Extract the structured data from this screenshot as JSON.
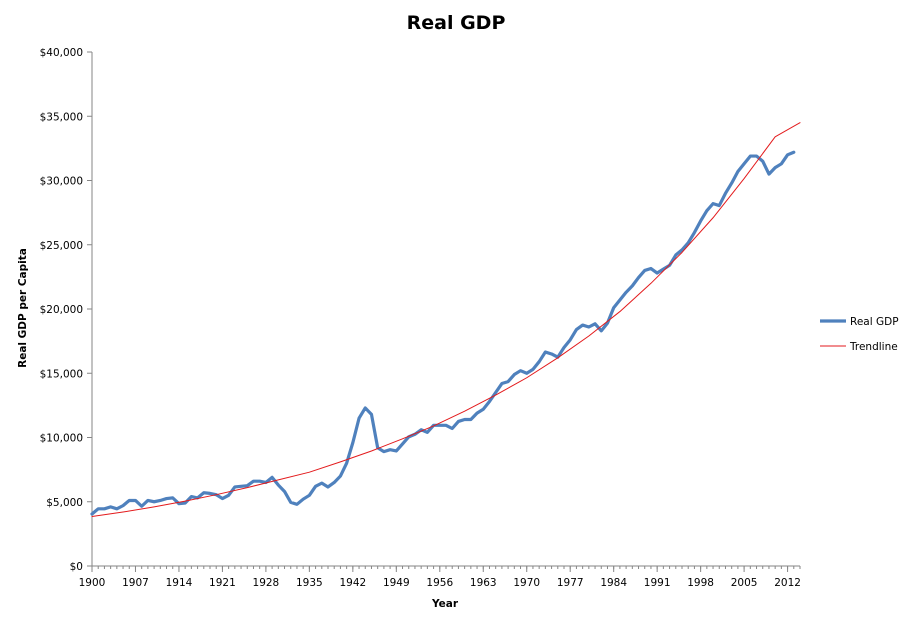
{
  "chart_data": {
    "type": "line",
    "title": "Real GDP",
    "xlabel": "Year",
    "ylabel": "Real GDP per Capita",
    "xlim": [
      1900,
      2014
    ],
    "ylim": [
      0,
      40000
    ],
    "x_ticks": [
      "1900",
      "1907",
      "1914",
      "1921",
      "1928",
      "1935",
      "1942",
      "1949",
      "1956",
      "1963",
      "1970",
      "1977",
      "1984",
      "1991",
      "1998",
      "2005",
      "2012"
    ],
    "y_ticks": [
      "$0",
      "$5,000",
      "$10,000",
      "$15,000",
      "$20,000",
      "$25,000",
      "$30,000",
      "$35,000",
      "$40,000"
    ],
    "grid": false,
    "legend_position": "right",
    "colors": {
      "real_gdp": "#4f81bd",
      "trendline": "#e31a1c"
    },
    "series": [
      {
        "name": "Real GDP",
        "x": [
          1900,
          1901,
          1902,
          1903,
          1904,
          1905,
          1906,
          1907,
          1908,
          1909,
          1910,
          1911,
          1912,
          1913,
          1914,
          1915,
          1916,
          1917,
          1918,
          1919,
          1920,
          1921,
          1922,
          1923,
          1924,
          1925,
          1926,
          1927,
          1928,
          1929,
          1930,
          1931,
          1932,
          1933,
          1934,
          1935,
          1936,
          1937,
          1938,
          1939,
          1940,
          1941,
          1942,
          1943,
          1944,
          1945,
          1946,
          1947,
          1948,
          1949,
          1950,
          1951,
          1952,
          1953,
          1954,
          1955,
          1956,
          1957,
          1958,
          1959,
          1960,
          1961,
          1962,
          1963,
          1964,
          1965,
          1966,
          1967,
          1968,
          1969,
          1970,
          1971,
          1972,
          1973,
          1974,
          1975,
          1976,
          1977,
          1978,
          1979,
          1980,
          1981,
          1982,
          1983,
          1984,
          1985,
          1986,
          1987,
          1988,
          1989,
          1990,
          1991,
          1992,
          1993,
          1994,
          1995,
          1996,
          1997,
          1998,
          1999,
          2000,
          2001,
          2002,
          2003,
          2004,
          2005,
          2006,
          2007,
          2008,
          2009,
          2010,
          2011,
          2012,
          2013
        ],
        "values": [
          4050,
          4450,
          4450,
          4600,
          4450,
          4700,
          5100,
          5100,
          4650,
          5100,
          5000,
          5100,
          5250,
          5300,
          4850,
          4900,
          5400,
          5300,
          5700,
          5650,
          5550,
          5250,
          5500,
          6150,
          6200,
          6250,
          6600,
          6600,
          6500,
          6900,
          6300,
          5800,
          4950,
          4800,
          5200,
          5500,
          6200,
          6450,
          6150,
          6500,
          7000,
          8000,
          9600,
          11500,
          12300,
          11800,
          9200,
          8900,
          9050,
          8950,
          9500,
          10050,
          10250,
          10600,
          10400,
          10950,
          10950,
          10950,
          10700,
          11250,
          11400,
          11400,
          11900,
          12200,
          12800,
          13500,
          14200,
          14350,
          14900,
          15200,
          15000,
          15300,
          15900,
          16650,
          16500,
          16250,
          17000,
          17600,
          18400,
          18750,
          18600,
          18850,
          18300,
          18900,
          20100,
          20700,
          21300,
          21800,
          22450,
          23000,
          23150,
          22800,
          23100,
          23400,
          24200,
          24600,
          25150,
          25950,
          26850,
          27650,
          28200,
          28050,
          29000,
          29800,
          30700,
          31300,
          31900,
          31900,
          31500,
          30500,
          31000,
          31300,
          32000,
          32200
        ]
      },
      {
        "name": "Trendline",
        "x": [
          1900,
          1905,
          1910,
          1915,
          1920,
          1925,
          1930,
          1935,
          1940,
          1945,
          1950,
          1955,
          1960,
          1965,
          1970,
          1975,
          1980,
          1985,
          1990,
          1995,
          2000,
          2005,
          2010,
          2014
        ],
        "values": [
          3850,
          4200,
          4600,
          5050,
          5550,
          6100,
          6700,
          7300,
          8100,
          8950,
          9900,
          10900,
          12050,
          13300,
          14650,
          16200,
          17900,
          19800,
          22000,
          24400,
          27100,
          30150,
          33400,
          34500
        ]
      }
    ]
  }
}
